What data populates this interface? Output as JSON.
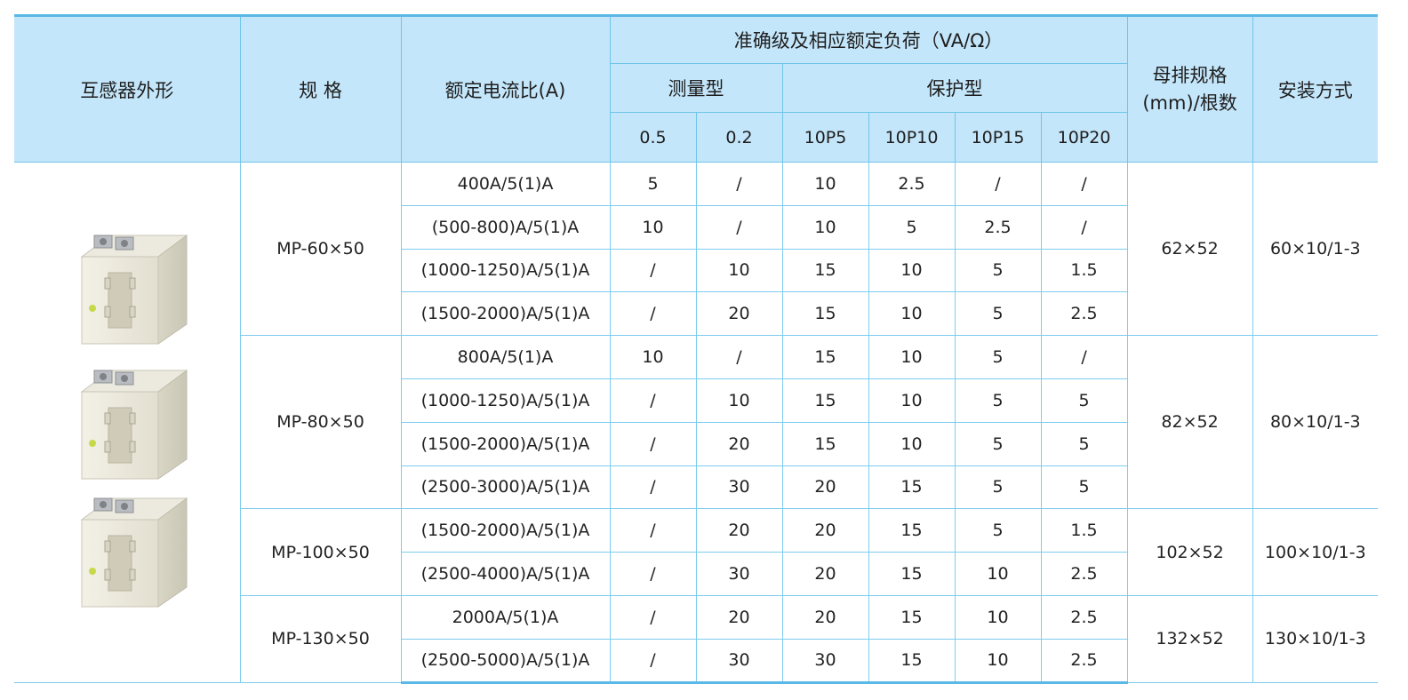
{
  "header": {
    "shape": "互感器外形",
    "spec": "规 格",
    "ratio": "额定电流比(A)",
    "accuracy": "准确级及相应额定负荷（VA/Ω）",
    "measure": "测量型",
    "protect": "保护型",
    "busbar": "母排规格\n(mm)/根数",
    "install": "安装方式",
    "classes": [
      "0.5",
      "0.2",
      "10P5",
      "10P10",
      "10P15",
      "10P20"
    ]
  },
  "groups": [
    {
      "spec": "MP-60×50",
      "busbar": "62×52",
      "install": "60×10/1-3",
      "rows": [
        {
          "ratio": "400A/5(1)A",
          "v": [
            "5",
            "/",
            "10",
            "2.5",
            "/",
            "/"
          ]
        },
        {
          "ratio": "(500-800)A/5(1)A",
          "v": [
            "10",
            "/",
            "10",
            "5",
            "2.5",
            "/"
          ]
        },
        {
          "ratio": "(1000-1250)A/5(1)A",
          "v": [
            "/",
            "10",
            "15",
            "10",
            "5",
            "1.5"
          ]
        },
        {
          "ratio": "(1500-2000)A/5(1)A",
          "v": [
            "/",
            "20",
            "15",
            "10",
            "5",
            "2.5"
          ]
        }
      ]
    },
    {
      "spec": "MP-80×50",
      "busbar": "82×52",
      "install": "80×10/1-3",
      "rows": [
        {
          "ratio": "800A/5(1)A",
          "v": [
            "10",
            "/",
            "15",
            "10",
            "5",
            "/"
          ]
        },
        {
          "ratio": "(1000-1250)A/5(1)A",
          "v": [
            "/",
            "10",
            "15",
            "10",
            "5",
            "5"
          ]
        },
        {
          "ratio": "(1500-2000)A/5(1)A",
          "v": [
            "/",
            "20",
            "15",
            "10",
            "5",
            "5"
          ]
        },
        {
          "ratio": "(2500-3000)A/5(1)A",
          "v": [
            "/",
            "30",
            "20",
            "15",
            "5",
            "5"
          ]
        }
      ]
    },
    {
      "spec": "MP-100×50",
      "busbar": "102×52",
      "install": "100×10/1-3",
      "rows": [
        {
          "ratio": "(1500-2000)A/5(1)A",
          "v": [
            "/",
            "20",
            "20",
            "15",
            "5",
            "1.5"
          ]
        },
        {
          "ratio": "(2500-4000)A/5(1)A",
          "v": [
            "/",
            "30",
            "20",
            "15",
            "10",
            "2.5"
          ]
        }
      ]
    },
    {
      "spec": "MP-130×50",
      "busbar": "132×52",
      "install": "130×10/1-3",
      "rows": [
        {
          "ratio": "2000A/5(1)A",
          "v": [
            "/",
            "20",
            "20",
            "15",
            "10",
            "2.5"
          ]
        },
        {
          "ratio": "(2500-5000)A/5(1)A",
          "v": [
            "/",
            "30",
            "30",
            "15",
            "10",
            "2.5"
          ]
        }
      ]
    }
  ]
}
